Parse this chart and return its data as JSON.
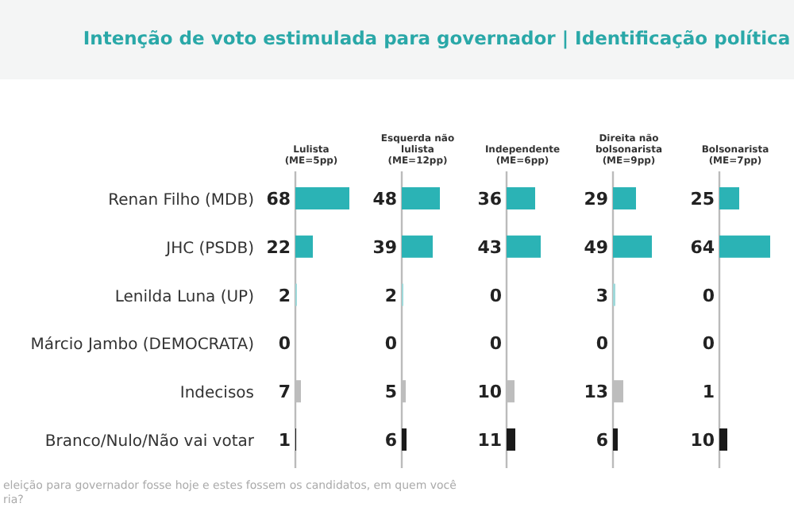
{
  "chart_data": [
    {
      "type": "bar",
      "orientation": "horizontal",
      "title": "Intenção de voto estimulada para governador | Identificação política",
      "subtitle": "Lulista (ME=5pp)",
      "categories": [
        "Renan Filho (MDB)",
        "JHC (PSDB)",
        "Lenilda Luna (UP)",
        "Márcio Jambo (DEMOCRATA)",
        "Indecisos",
        "Branco/Nulo/Não vai votar"
      ],
      "values": [
        68,
        22,
        2,
        0,
        7,
        1
      ],
      "colors": [
        "#2bb3b5",
        "#2bb3b5",
        "#9fd9da",
        "#2bb3b5",
        "#bdbdbd",
        "#1a1a1a"
      ],
      "data_labels": true,
      "tick_labels": "y",
      "annotations": [
        "eleição para governador fosse hoje e estes fossem os candidatos, em quem você",
        "ria?"
      ]
    },
    {
      "type": "bar",
      "orientation": "horizontal",
      "subtitle": "Esquerda não lulista (ME=12pp)",
      "values": [
        48,
        39,
        2,
        0,
        5,
        6
      ],
      "colors": [
        "#2bb3b5",
        "#2bb3b5",
        "#9fd9da",
        "#2bb3b5",
        "#bdbdbd",
        "#1a1a1a"
      ],
      "data_labels": true,
      "tick_labels": false
    },
    {
      "type": "bar",
      "orientation": "horizontal",
      "subtitle": "Independente (ME=6pp)",
      "values": [
        36,
        43,
        0,
        0,
        10,
        11
      ],
      "colors": [
        "#2bb3b5",
        "#2bb3b5",
        "#9fd9da",
        "#2bb3b5",
        "#bdbdbd",
        "#1a1a1a"
      ],
      "data_labels": true,
      "tick_labels": false
    },
    {
      "type": "bar",
      "orientation": "horizontal",
      "subtitle": "Direita não bolsonarista (ME=9pp)",
      "values": [
        29,
        49,
        3,
        0,
        13,
        6
      ],
      "colors": [
        "#2bb3b5",
        "#2bb3b5",
        "#9fd9da",
        "#2bb3b5",
        "#bdbdbd",
        "#1a1a1a"
      ],
      "data_labels": true,
      "tick_labels": false
    },
    {
      "type": "bar",
      "orientation": "horizontal",
      "subtitle": "Bolsonarista (ME=7pp)",
      "values": [
        25,
        64,
        0,
        0,
        1,
        10
      ],
      "colors": [
        "#2bb3b5",
        "#2bb3b5",
        "#9fd9da",
        "#2bb3b5",
        "#bdbdbd",
        "#1a1a1a"
      ],
      "data_labels": true,
      "tick_labels": false
    }
  ]
}
